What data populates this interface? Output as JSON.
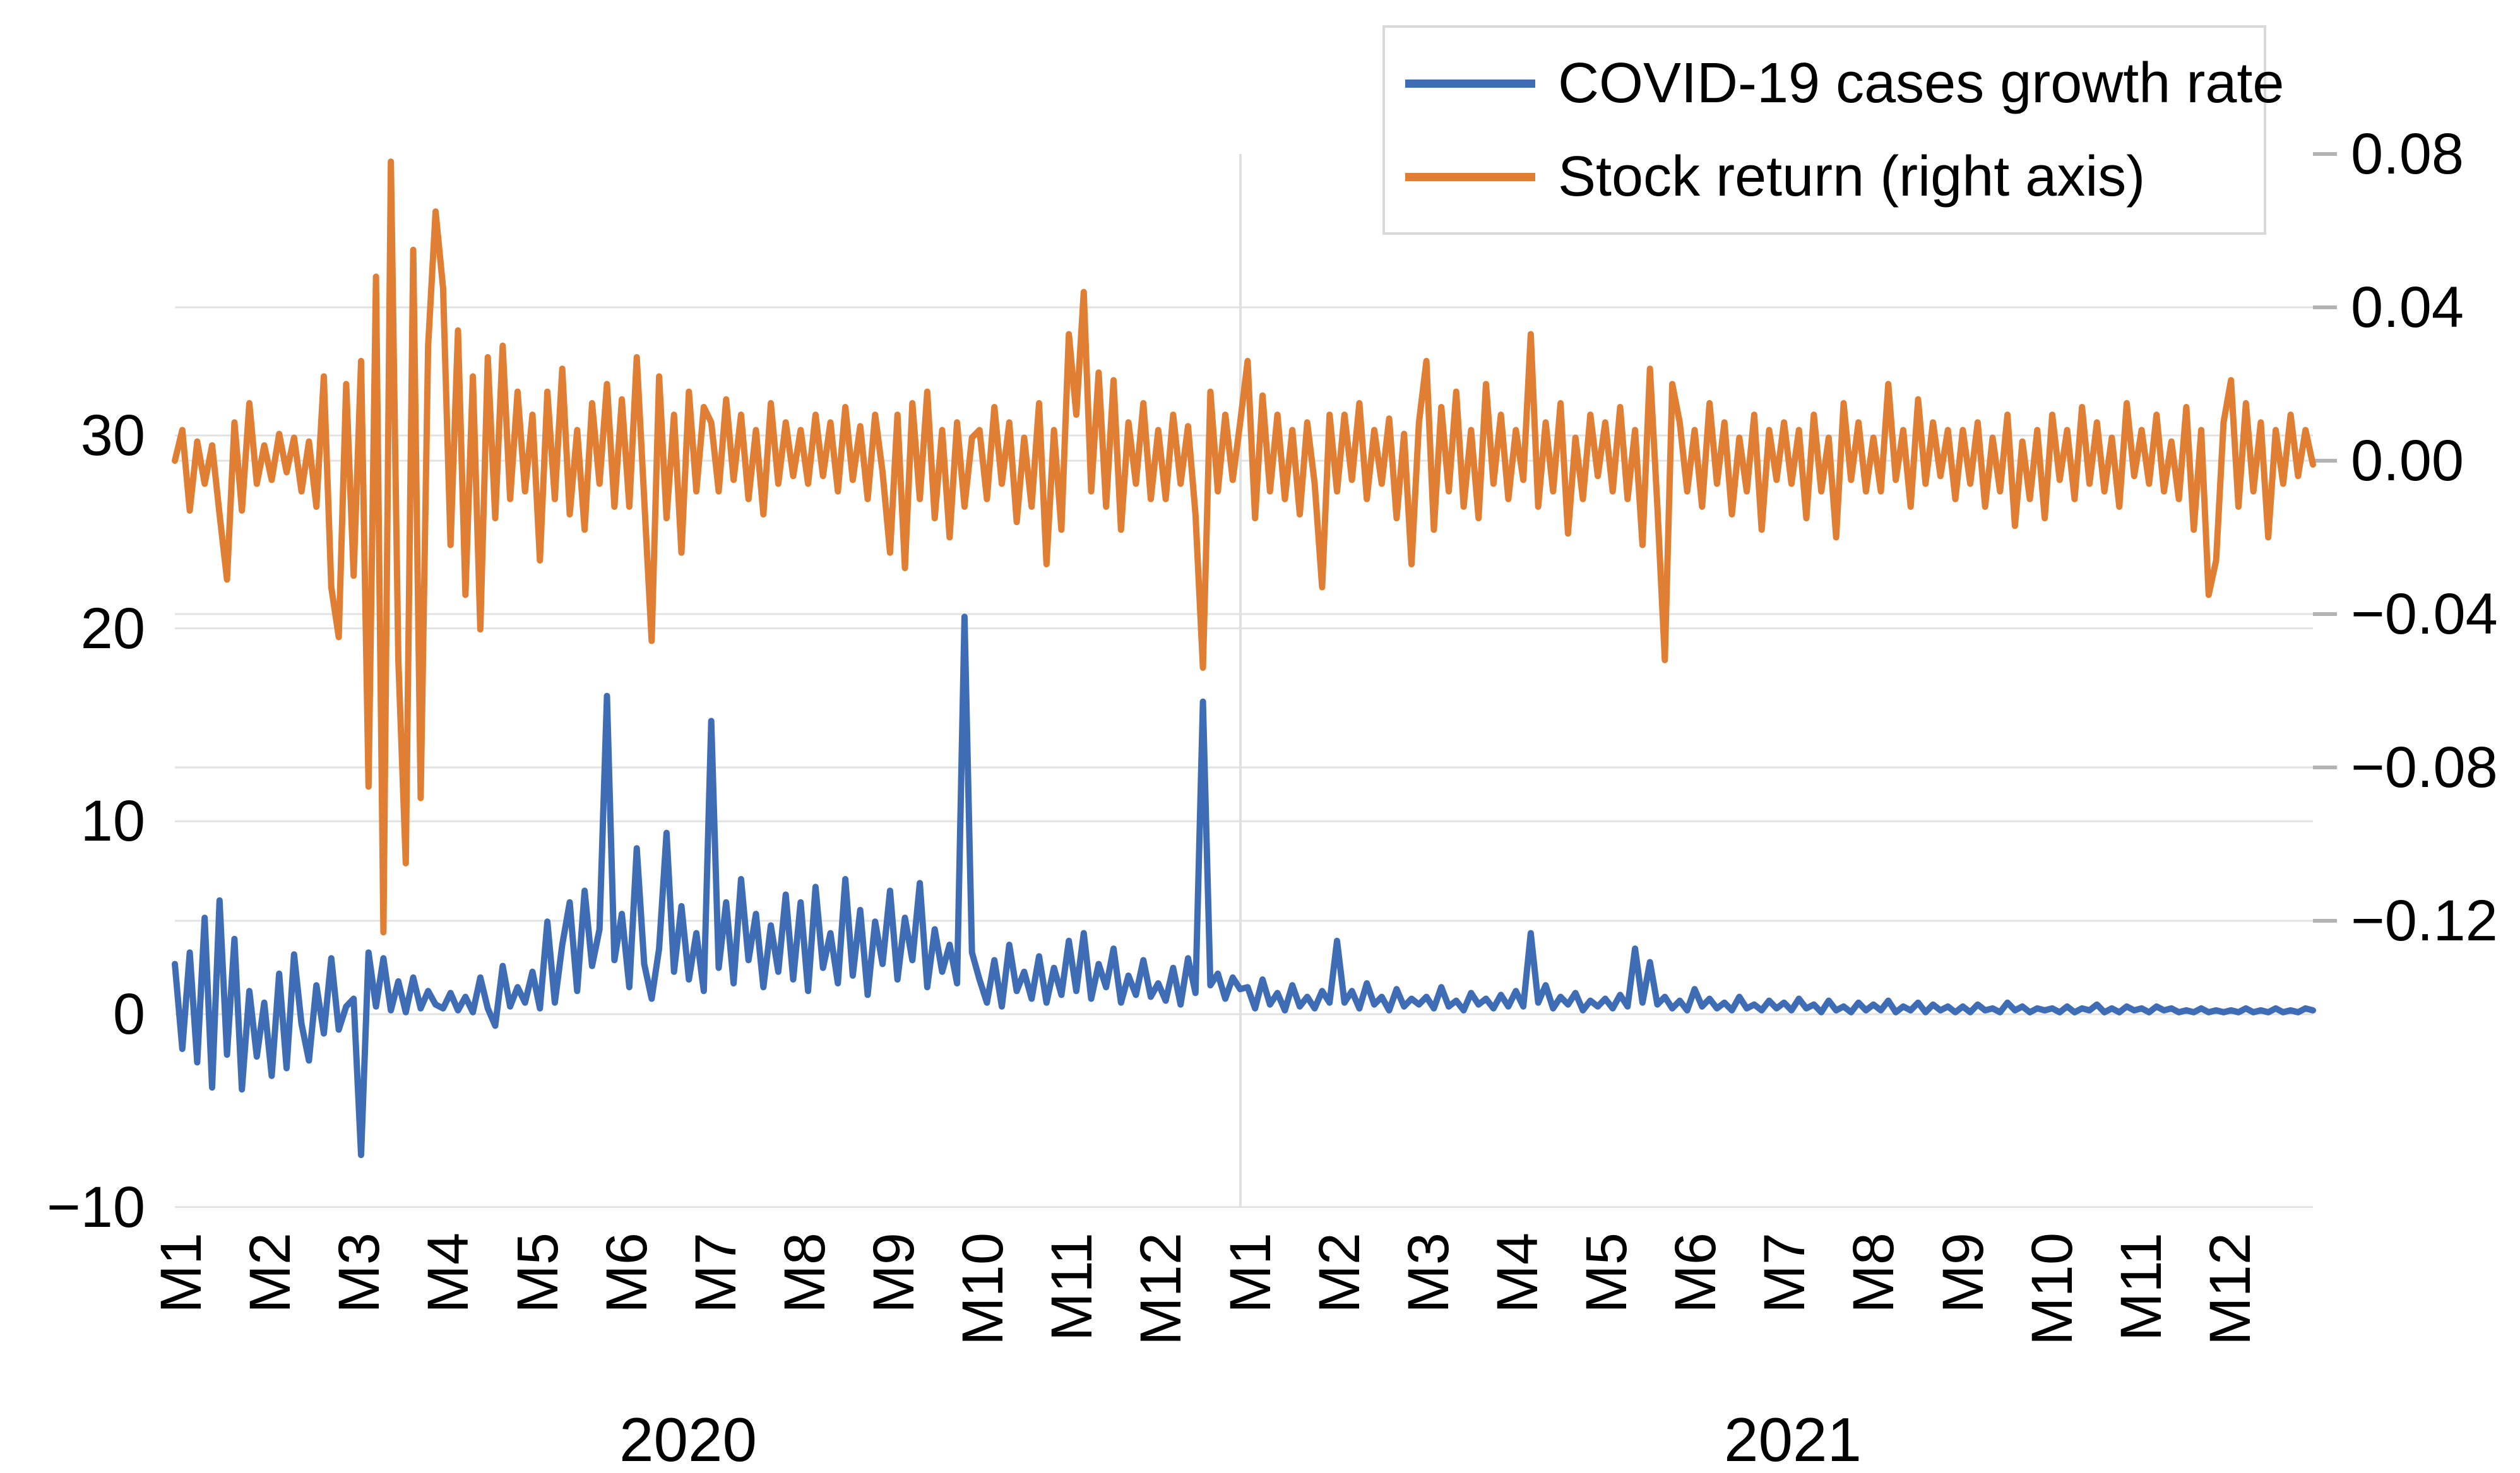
{
  "chart_data": {
    "type": "line",
    "title": "",
    "grid": true,
    "legend_position": "top-right",
    "legend": {
      "entries": [
        {
          "label": "COVID-19 cases growth rate",
          "color": "#3F6DB5",
          "axis": "left"
        },
        {
          "label": "Stock return (right axis)",
          "color": "#E07E33",
          "axis": "right"
        }
      ]
    },
    "x_axis": {
      "unit": "day (labeled monthly)",
      "month_tick_labels": [
        "M1",
        "M2",
        "M3",
        "M4",
        "M5",
        "M6",
        "M7",
        "M8",
        "M9",
        "M10",
        "M11",
        "M12",
        "M1",
        "M2",
        "M3",
        "M4",
        "M5",
        "M6",
        "M7",
        "M8",
        "M9",
        "M10",
        "M11",
        "M12"
      ],
      "year_groups": [
        {
          "label": "2020"
        },
        {
          "label": "2021"
        }
      ],
      "points_per_month": 12
    },
    "left_axis": {
      "title": "",
      "tick_labels": [
        "30",
        "20",
        "10",
        "0",
        "−10"
      ],
      "tick_values": [
        30,
        20,
        10,
        0,
        -10
      ],
      "range_shown": [
        -10,
        30
      ]
    },
    "right_axis": {
      "title": "",
      "tick_labels": [
        "0.08",
        "0.04",
        "0.00",
        "−0.04",
        "−0.08",
        "−0.12"
      ],
      "tick_values": [
        0.08,
        0.04,
        0.0,
        -0.04,
        -0.08,
        -0.12
      ],
      "range_shown": [
        -0.12,
        0.08
      ]
    },
    "series": [
      {
        "name": "COVID-19 cases growth rate",
        "axis": "left",
        "color": "#3F6DB5",
        "values": [
          2.6,
          -1.8,
          3.2,
          -2.5,
          5.0,
          -3.8,
          5.9,
          -2.1,
          3.9,
          -3.9,
          1.2,
          -2.2,
          0.6,
          -3.2,
          2.1,
          -2.8,
          3.1,
          -0.5,
          -2.4,
          1.5,
          -1.0,
          2.9,
          -0.8,
          0.4,
          0.8,
          -7.3,
          3.2,
          0.4,
          2.9,
          0.2,
          1.7,
          0.1,
          1.9,
          0.3,
          1.2,
          0.5,
          0.3,
          1.1,
          0.2,
          0.9,
          0.1,
          1.9,
          0.3,
          -0.6,
          2.5,
          0.4,
          1.4,
          0.6,
          2.2,
          0.3,
          4.8,
          0.6,
          3.6,
          5.8,
          1.2,
          6.4,
          2.5,
          4.4,
          16.5,
          2.8,
          5.2,
          1.4,
          8.6,
          2.6,
          0.8,
          3.4,
          9.4,
          2.2,
          5.6,
          1.8,
          4.2,
          1.2,
          15.2,
          2.4,
          5.8,
          1.6,
          7.0,
          2.8,
          5.2,
          1.4,
          4.6,
          2.2,
          6.2,
          1.8,
          5.8,
          1.2,
          6.6,
          2.4,
          4.2,
          1.6,
          7.0,
          2.0,
          5.4,
          1.0,
          4.8,
          2.6,
          6.4,
          1.8,
          5.0,
          2.8,
          6.8,
          1.4,
          4.4,
          2.2,
          3.6,
          1.6,
          20.6,
          3.2,
          1.8,
          0.6,
          2.8,
          0.4,
          3.6,
          1.2,
          2.2,
          0.8,
          3.0,
          0.6,
          2.4,
          1.0,
          3.8,
          1.2,
          4.2,
          0.8,
          2.6,
          1.4,
          3.4,
          0.6,
          2.0,
          1.0,
          2.8,
          0.9,
          1.6,
          0.7,
          2.4,
          0.5,
          2.9,
          1.1,
          16.2,
          1.5,
          2.1,
          0.8,
          1.9,
          1.3,
          1.4,
          0.3,
          1.8,
          0.5,
          1.1,
          0.2,
          1.5,
          0.4,
          0.9,
          0.3,
          1.2,
          0.6,
          3.8,
          0.6,
          1.2,
          0.3,
          1.6,
          0.5,
          0.9,
          0.2,
          1.3,
          0.4,
          0.8,
          0.5,
          0.9,
          0.3,
          1.4,
          0.4,
          0.7,
          0.2,
          1.1,
          0.5,
          0.8,
          0.3,
          1.0,
          0.4,
          1.2,
          0.4,
          4.2,
          0.6,
          1.5,
          0.3,
          0.9,
          0.5,
          1.1,
          0.2,
          0.7,
          0.4,
          0.8,
          0.3,
          1.0,
          0.4,
          3.4,
          0.6,
          2.7,
          0.5,
          0.9,
          0.3,
          0.7,
          0.2,
          1.3,
          0.4,
          0.8,
          0.3,
          0.6,
          0.2,
          0.9,
          0.3,
          0.5,
          0.2,
          0.7,
          0.3,
          0.6,
          0.2,
          0.8,
          0.3,
          0.5,
          0.1,
          0.7,
          0.2,
          0.4,
          0.1,
          0.6,
          0.2,
          0.5,
          0.2,
          0.7,
          0.1,
          0.4,
          0.2,
          0.6,
          0.1,
          0.5,
          0.2,
          0.4,
          0.1,
          0.4,
          0.1,
          0.5,
          0.2,
          0.3,
          0.1,
          0.6,
          0.2,
          0.4,
          0.1,
          0.3,
          0.2,
          0.3,
          0.1,
          0.4,
          0.1,
          0.3,
          0.2,
          0.5,
          0.1,
          0.3,
          0.1,
          0.4,
          0.2,
          0.3,
          0.1,
          0.4,
          0.2,
          0.3,
          0.1,
          0.2,
          0.1,
          0.3,
          0.1,
          0.2,
          0.1,
          0.2,
          0.1,
          0.3,
          0.1,
          0.2,
          0.1,
          0.3,
          0.1,
          0.2,
          0.1,
          0.3,
          0.2
        ]
      },
      {
        "name": "Stock return (right axis)",
        "axis": "right",
        "color": "#E07E33",
        "values": [
          0.0,
          0.008,
          -0.013,
          0.005,
          -0.006,
          0.004,
          -0.014,
          -0.031,
          0.01,
          -0.013,
          0.015,
          -0.006,
          0.004,
          -0.005,
          0.007,
          -0.003,
          0.006,
          -0.008,
          0.005,
          -0.012,
          0.022,
          -0.033,
          -0.046,
          0.02,
          -0.03,
          0.026,
          -0.085,
          0.048,
          -0.123,
          0.078,
          -0.052,
          -0.105,
          0.055,
          -0.088,
          0.03,
          0.065,
          0.045,
          -0.022,
          0.034,
          -0.035,
          0.022,
          -0.044,
          0.027,
          -0.015,
          0.03,
          -0.01,
          0.018,
          -0.008,
          0.012,
          -0.026,
          0.018,
          -0.01,
          0.024,
          -0.014,
          0.008,
          -0.018,
          0.015,
          -0.006,
          0.02,
          -0.012,
          0.016,
          -0.012,
          0.027,
          -0.01,
          -0.047,
          0.022,
          -0.015,
          0.012,
          -0.024,
          0.018,
          -0.008,
          0.014,
          0.01,
          -0.008,
          0.016,
          -0.005,
          0.012,
          -0.01,
          0.008,
          -0.014,
          0.015,
          -0.006,
          0.01,
          -0.004,
          0.008,
          -0.006,
          0.012,
          -0.004,
          0.01,
          -0.008,
          0.014,
          -0.005,
          0.009,
          -0.01,
          0.012,
          -0.003,
          -0.024,
          0.012,
          -0.028,
          0.015,
          -0.01,
          0.018,
          -0.015,
          0.008,
          -0.02,
          0.01,
          -0.012,
          0.006,
          0.008,
          -0.01,
          0.014,
          -0.006,
          0.01,
          -0.016,
          0.006,
          -0.012,
          0.015,
          -0.027,
          0.008,
          -0.018,
          0.033,
          0.012,
          0.044,
          -0.008,
          0.023,
          -0.012,
          0.021,
          -0.018,
          0.01,
          -0.006,
          0.015,
          -0.01,
          0.008,
          -0.01,
          0.012,
          -0.006,
          0.009,
          -0.014,
          -0.054,
          0.018,
          -0.008,
          0.012,
          -0.005,
          0.01,
          0.026,
          -0.015,
          0.017,
          -0.008,
          0.012,
          -0.01,
          0.008,
          -0.014,
          0.01,
          -0.006,
          -0.033,
          0.012,
          -0.008,
          0.012,
          -0.005,
          0.015,
          -0.01,
          0.008,
          -0.006,
          0.011,
          -0.015,
          0.007,
          -0.027,
          0.01,
          0.026,
          -0.018,
          0.014,
          -0.008,
          0.018,
          -0.012,
          0.008,
          -0.015,
          0.02,
          -0.006,
          0.012,
          -0.01,
          0.008,
          -0.005,
          0.033,
          -0.012,
          0.01,
          -0.008,
          0.015,
          -0.019,
          0.006,
          -0.01,
          0.012,
          -0.004,
          0.01,
          -0.008,
          0.014,
          -0.01,
          0.008,
          -0.022,
          0.024,
          -0.012,
          -0.052,
          0.02,
          0.01,
          -0.008,
          0.008,
          -0.012,
          0.015,
          -0.006,
          0.01,
          -0.014,
          0.006,
          -0.008,
          0.012,
          -0.018,
          0.008,
          -0.005,
          0.01,
          -0.006,
          0.008,
          -0.015,
          0.012,
          -0.008,
          0.006,
          -0.02,
          0.015,
          -0.005,
          0.01,
          -0.008,
          0.006,
          -0.008,
          0.02,
          -0.005,
          0.008,
          -0.012,
          0.016,
          -0.006,
          0.01,
          -0.004,
          0.008,
          -0.01,
          0.008,
          -0.006,
          0.01,
          -0.012,
          0.006,
          -0.008,
          0.012,
          -0.017,
          0.005,
          -0.01,
          0.008,
          -0.015,
          0.012,
          -0.005,
          0.008,
          -0.01,
          0.014,
          -0.006,
          0.01,
          -0.008,
          0.006,
          -0.012,
          0.015,
          -0.004,
          0.008,
          -0.006,
          0.012,
          -0.008,
          0.005,
          -0.01,
          0.014,
          -0.018,
          0.008,
          -0.035,
          -0.026,
          0.01,
          0.021,
          -0.012,
          0.015,
          -0.008,
          0.01,
          -0.02,
          0.008,
          -0.006,
          0.012,
          -0.004,
          0.008,
          -0.001
        ]
      }
    ],
    "style_colors": {
      "gridline": "#E2E2E2",
      "tick_mark": "#B3B3B3",
      "year_separator": "#E0E0E0",
      "legend_border": "#D9D9D9",
      "text": "#000000"
    }
  }
}
